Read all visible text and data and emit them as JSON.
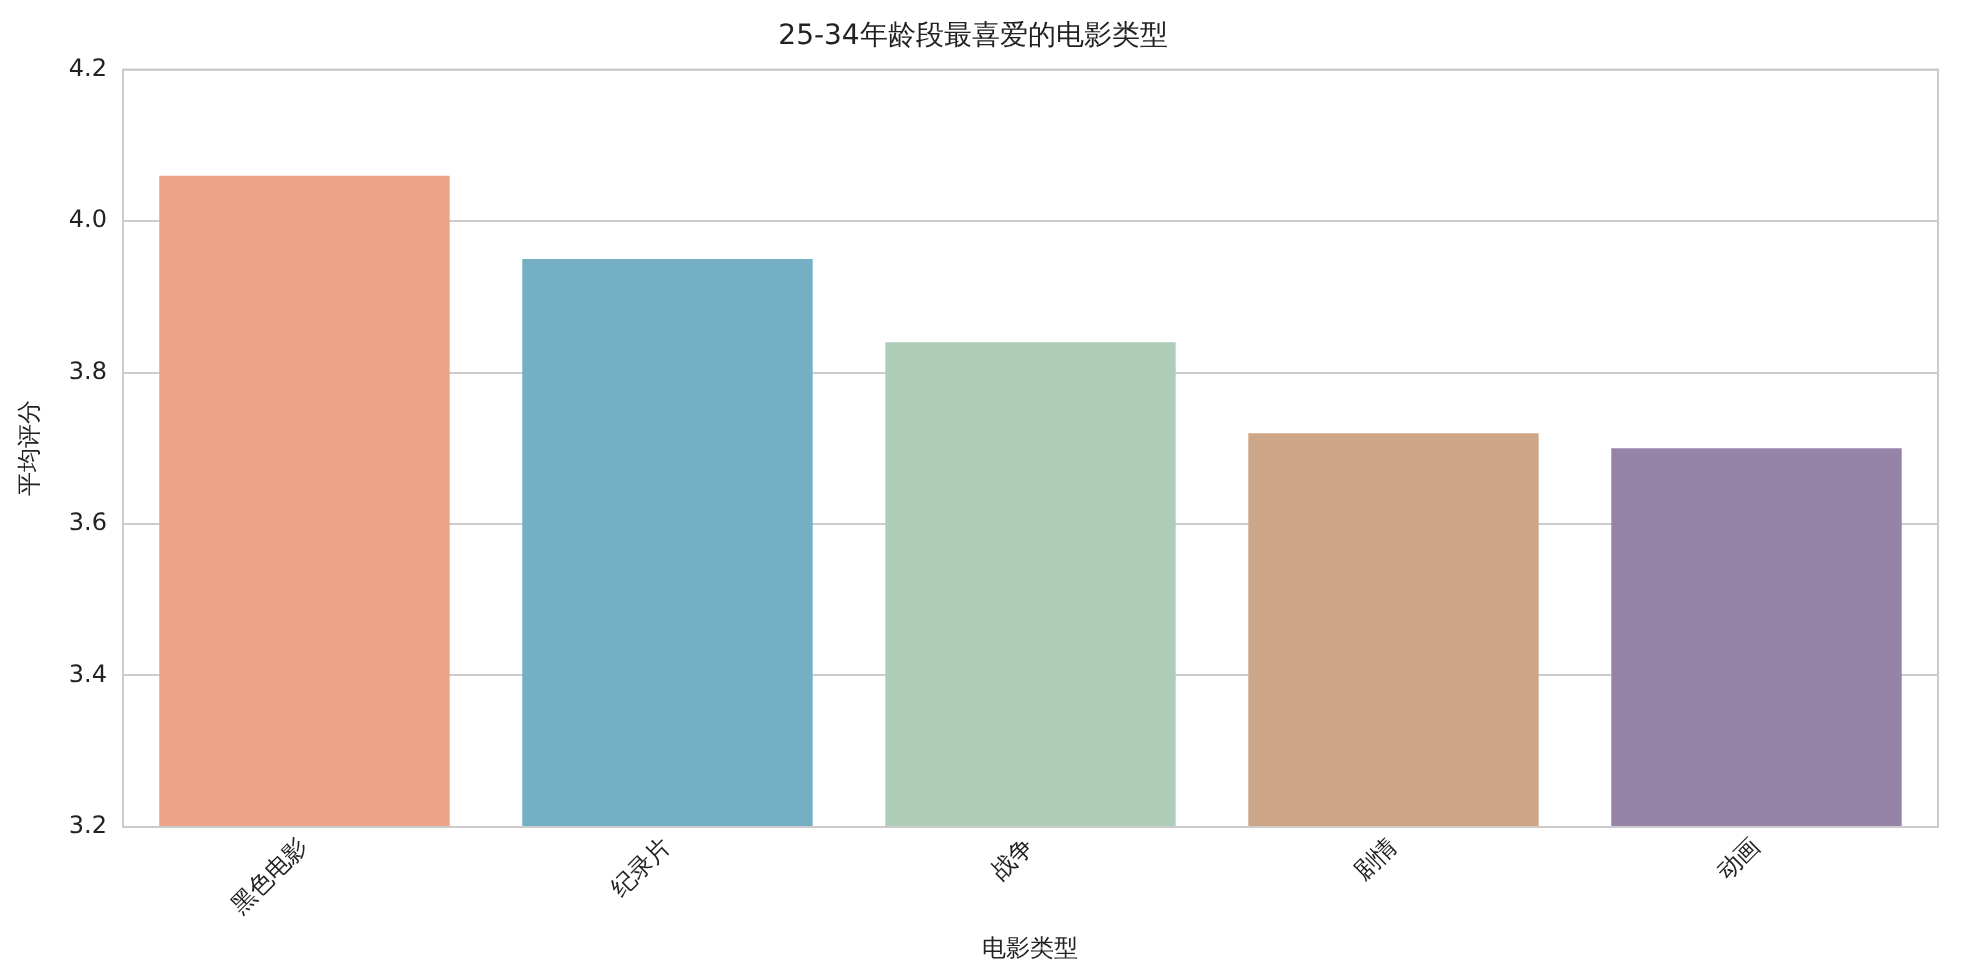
{
  "chart_data": {
    "type": "bar",
    "title": "25-34年龄段最喜爱的电影类型",
    "xlabel": "电影类型",
    "ylabel": "平均评分",
    "categories": [
      "黑色电影",
      "纪录片",
      "战争",
      "剧情",
      "动画"
    ],
    "values": [
      4.06,
      3.95,
      3.84,
      3.72,
      3.7
    ],
    "colors": [
      "#eea286",
      "#74afc4",
      "#aecdb9",
      "#cda687",
      "#9584a8"
    ],
    "ylim": [
      3.2,
      4.2
    ],
    "yticks": [
      3.2,
      3.4,
      3.6,
      3.8,
      {
        "value": 4.0,
        "label": "4.0"
      },
      4.2
    ],
    "grid": "y",
    "legend": false
  }
}
